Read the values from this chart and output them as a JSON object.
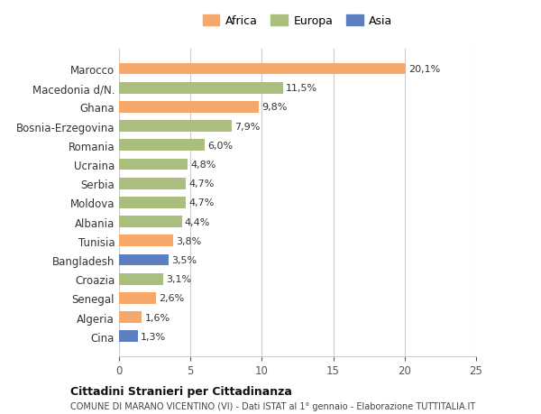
{
  "countries": [
    "Cina",
    "Algeria",
    "Senegal",
    "Croazia",
    "Bangladesh",
    "Tunisia",
    "Albania",
    "Moldova",
    "Serbia",
    "Ucraina",
    "Romania",
    "Bosnia-Erzegovina",
    "Ghana",
    "Macedonia d/N.",
    "Marocco"
  ],
  "values": [
    1.3,
    1.6,
    2.6,
    3.1,
    3.5,
    3.8,
    4.4,
    4.7,
    4.7,
    4.8,
    6.0,
    7.9,
    9.8,
    11.5,
    20.1
  ],
  "continents": [
    "Asia",
    "Africa",
    "Africa",
    "Europa",
    "Asia",
    "Africa",
    "Europa",
    "Europa",
    "Europa",
    "Europa",
    "Europa",
    "Europa",
    "Africa",
    "Europa",
    "Africa"
  ],
  "colors": {
    "Africa": "#F5A86A",
    "Europa": "#AABF7E",
    "Asia": "#5B7FC1"
  },
  "legend_labels": [
    "Africa",
    "Europa",
    "Asia"
  ],
  "title": "Cittadini Stranieri per Cittadinanza",
  "subtitle": "COMUNE DI MARANO VICENTINO (VI) - Dati ISTAT al 1° gennaio - Elaborazione TUTTITALIA.IT",
  "xlim": [
    0,
    25
  ],
  "xticks": [
    0,
    5,
    10,
    15,
    20,
    25
  ],
  "bg_color": "#ffffff",
  "bar_height": 0.6,
  "grid_color": "#cccccc"
}
